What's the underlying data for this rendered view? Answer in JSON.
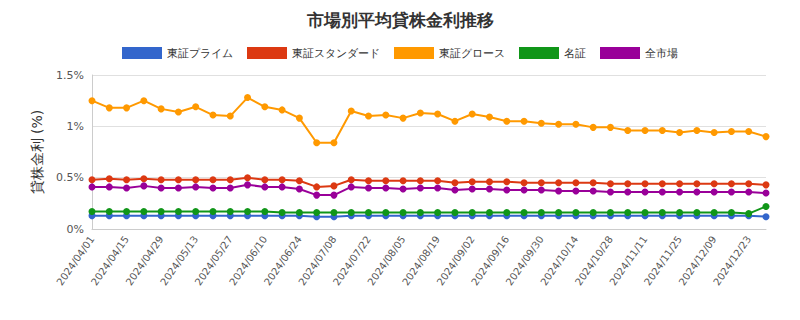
{
  "chart_data": {
    "type": "line",
    "title": "市場別平均貸株金利推移",
    "y_label": "貸株金利 (%)",
    "categories": [
      "2024/04/01",
      null,
      "2024/04/15",
      null,
      "2024/04/29",
      null,
      "2024/05/13",
      null,
      "2024/05/27",
      null,
      "2024/06/10",
      null,
      "2024/06/24",
      null,
      "2024/07/08",
      null,
      "2024/07/22",
      null,
      "2024/08/05",
      null,
      "2024/08/19",
      null,
      "2024/09/02",
      null,
      "2024/09/16",
      null,
      "2024/09/30",
      null,
      "2024/10/14",
      null,
      "2024/10/28",
      null,
      "2024/11/11",
      null,
      "2024/11/25",
      null,
      "2024/12/09",
      null,
      "2024/12/23",
      null
    ],
    "series": [
      {
        "name": "東証プライム",
        "color": "#3366cc",
        "values": [
          0.13,
          0.13,
          0.13,
          0.13,
          0.13,
          0.13,
          0.13,
          0.13,
          0.13,
          0.13,
          0.13,
          0.13,
          0.13,
          0.12,
          0.12,
          0.13,
          0.13,
          0.13,
          0.13,
          0.13,
          0.13,
          0.13,
          0.13,
          0.13,
          0.13,
          0.13,
          0.13,
          0.13,
          0.13,
          0.13,
          0.13,
          0.13,
          0.13,
          0.13,
          0.13,
          0.13,
          0.13,
          0.13,
          0.13,
          0.12
        ]
      },
      {
        "name": "東証スタンダード",
        "color": "#dc3912",
        "values": [
          0.48,
          0.49,
          0.48,
          0.49,
          0.48,
          0.48,
          0.48,
          0.48,
          0.48,
          0.5,
          0.48,
          0.48,
          0.47,
          0.41,
          0.42,
          0.48,
          0.47,
          0.47,
          0.47,
          0.47,
          0.47,
          0.45,
          0.46,
          0.46,
          0.46,
          0.45,
          0.45,
          0.45,
          0.45,
          0.45,
          0.44,
          0.44,
          0.44,
          0.44,
          0.44,
          0.44,
          0.44,
          0.44,
          0.44,
          0.43
        ]
      },
      {
        "name": "東証グロース",
        "color": "#ff9900",
        "values": [
          1.25,
          1.18,
          1.18,
          1.25,
          1.17,
          1.14,
          1.19,
          1.11,
          1.1,
          1.28,
          1.19,
          1.16,
          1.08,
          0.84,
          0.84,
          1.15,
          1.1,
          1.11,
          1.08,
          1.13,
          1.12,
          1.05,
          1.12,
          1.09,
          1.05,
          1.05,
          1.03,
          1.02,
          1.02,
          0.99,
          0.99,
          0.96,
          0.96,
          0.96,
          0.94,
          0.96,
          0.94,
          0.95,
          0.95,
          0.9
        ]
      },
      {
        "name": "名証",
        "color": "#109618",
        "values": [
          0.17,
          0.17,
          0.17,
          0.17,
          0.17,
          0.17,
          0.17,
          0.17,
          0.17,
          0.17,
          0.17,
          0.16,
          0.16,
          0.16,
          0.16,
          0.16,
          0.16,
          0.16,
          0.16,
          0.16,
          0.16,
          0.16,
          0.16,
          0.16,
          0.16,
          0.16,
          0.16,
          0.16,
          0.16,
          0.16,
          0.16,
          0.16,
          0.16,
          0.16,
          0.16,
          0.16,
          0.16,
          0.16,
          0.15,
          0.22
        ]
      },
      {
        "name": "全市場",
        "color": "#990099",
        "values": [
          0.41,
          0.41,
          0.4,
          0.42,
          0.4,
          0.4,
          0.41,
          0.4,
          0.4,
          0.43,
          0.41,
          0.41,
          0.39,
          0.33,
          0.33,
          0.41,
          0.4,
          0.4,
          0.39,
          0.4,
          0.4,
          0.38,
          0.39,
          0.39,
          0.38,
          0.38,
          0.38,
          0.37,
          0.37,
          0.37,
          0.36,
          0.36,
          0.36,
          0.36,
          0.36,
          0.36,
          0.36,
          0.36,
          0.36,
          0.35
        ]
      }
    ],
    "ylim": [
      0,
      1.5
    ],
    "yticks": [
      {
        "value": 0,
        "label": "0%"
      },
      {
        "value": 0.5,
        "label": "0.5%"
      },
      {
        "value": 1,
        "label": "1%"
      },
      {
        "value": 1.5,
        "label": "1.5%"
      }
    ],
    "grid": true,
    "legend": "top",
    "marker": "circle"
  }
}
